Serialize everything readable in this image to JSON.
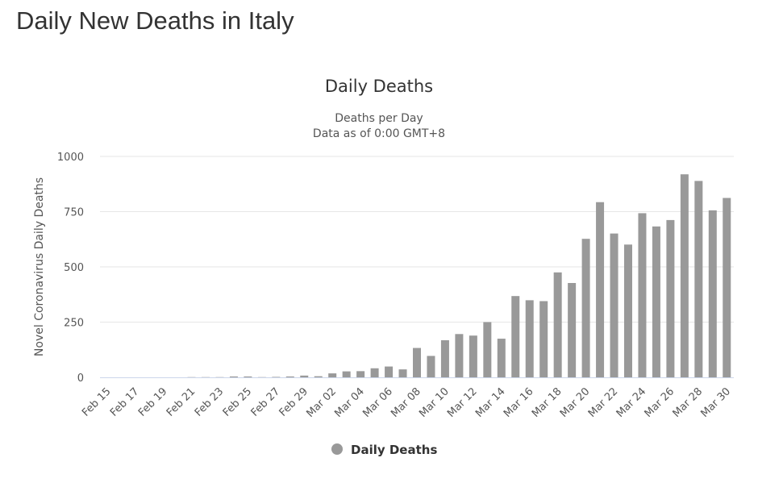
{
  "page_title": "Daily New Deaths in Italy",
  "chart_data": {
    "type": "bar",
    "title": "Daily Deaths",
    "subtitle_lines": [
      "Deaths per Day",
      "Data as of 0:00 GMT+8"
    ],
    "xlabel": "",
    "ylabel": "Novel Coronavirus Daily Deaths",
    "ylim": [
      0,
      1000
    ],
    "yticks": [
      0,
      250,
      500,
      750,
      1000
    ],
    "grid": true,
    "legend_position": "bottom",
    "bar_color": "#999999",
    "categories": [
      "Feb 15",
      "Feb 16",
      "Feb 17",
      "Feb 18",
      "Feb 19",
      "Feb 20",
      "Feb 21",
      "Feb 22",
      "Feb 23",
      "Feb 24",
      "Feb 25",
      "Feb 26",
      "Feb 27",
      "Feb 28",
      "Feb 29",
      "Mar 01",
      "Mar 02",
      "Mar 03",
      "Mar 04",
      "Mar 05",
      "Mar 06",
      "Mar 07",
      "Mar 08",
      "Mar 09",
      "Mar 10",
      "Mar 11",
      "Mar 12",
      "Mar 13",
      "Mar 14",
      "Mar 15",
      "Mar 16",
      "Mar 17",
      "Mar 18",
      "Mar 19",
      "Mar 20",
      "Mar 21",
      "Mar 22",
      "Mar 23",
      "Mar 24",
      "Mar 25",
      "Mar 26",
      "Mar 27",
      "Mar 28",
      "Mar 29",
      "Mar 30"
    ],
    "series": [
      {
        "name": "Daily Deaths",
        "values": [
          0,
          0,
          0,
          0,
          0,
          0,
          1,
          1,
          1,
          4,
          4,
          1,
          2,
          4,
          8,
          5,
          18,
          27,
          28,
          41,
          49,
          36,
          133,
          97,
          168,
          196,
          189,
          250,
          175,
          368,
          349,
          345,
          475,
          427,
          627,
          793,
          651,
          601,
          743,
          683,
          712,
          919,
          889,
          756,
          812
        ]
      }
    ]
  }
}
